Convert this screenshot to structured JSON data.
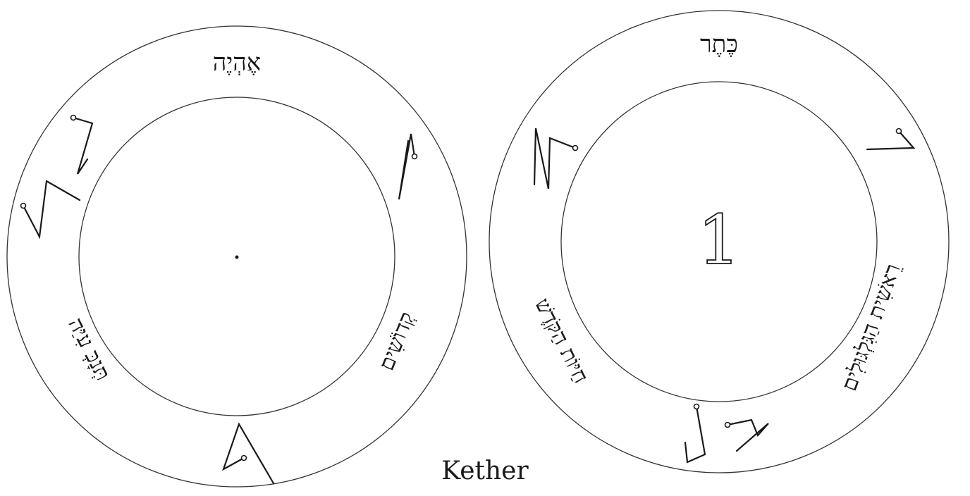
{
  "caption": "Kether",
  "left_disc": {
    "top_name": "אֶהְיֶה",
    "left_text": "תְּנָכְּ עִיַּה",
    "right_text": "קְדוֹשִׁים"
  },
  "right_disc": {
    "top_name": "כֶּתֶר",
    "center_numeral": "1",
    "left_text": "חַיּוֹת הַקֹּדֶשׁ",
    "right_text": "רֵאשִׁית הַגִּלְגּוּלִים"
  }
}
